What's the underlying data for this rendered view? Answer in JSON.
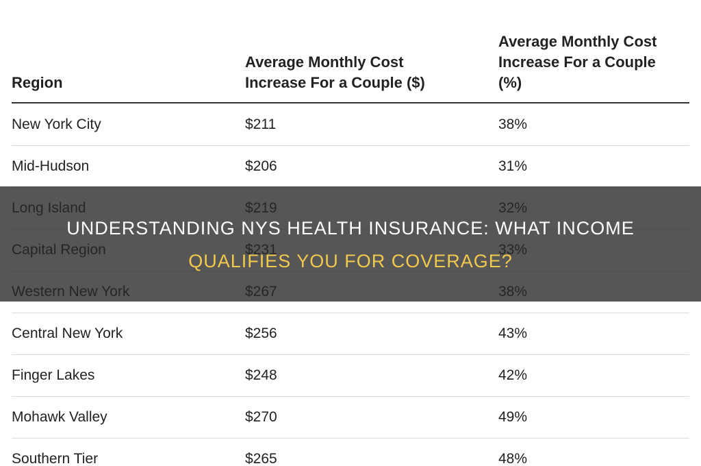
{
  "table": {
    "header": [
      "Region",
      "Average Monthly Cost Increase For a Couple ($)",
      "Average Monthly Cost Increase For a Couple (%)"
    ],
    "rows": [
      [
        "New York City",
        "$211",
        "38%"
      ],
      [
        "Mid-Hudson",
        "$206",
        "31%"
      ],
      [
        "Long Island",
        "$219",
        "32%"
      ],
      [
        "Capital Region",
        "$231",
        "33%"
      ],
      [
        "Western New York",
        "$267",
        "38%"
      ],
      [
        "Central New York",
        "$256",
        "43%"
      ],
      [
        "Finger Lakes",
        "$248",
        "42%"
      ],
      [
        "Mohawk Valley",
        "$270",
        "49%"
      ],
      [
        "Southern Tier",
        "$265",
        "48%"
      ]
    ]
  },
  "banner": {
    "lines": [
      "UNDERSTANDING NYS HEALTH INSURANCE: WHAT INCOME",
      "QUALIFIES YOU FOR COVERAGE?"
    ]
  }
}
